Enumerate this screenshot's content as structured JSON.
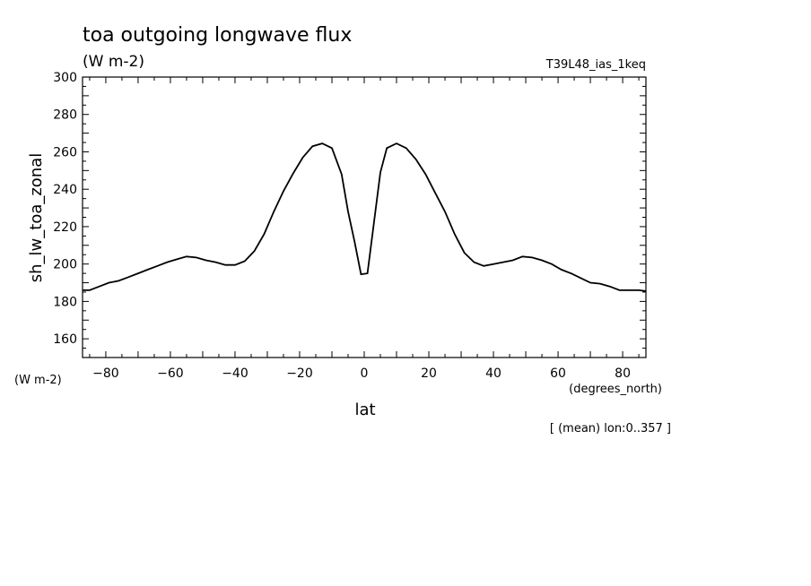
{
  "chart_data": {
    "type": "line",
    "title": "toa outgoing longwave flux",
    "units": "(W m-2)",
    "experiment": "T39L48_ias_1keq",
    "ylabel": "sh_lw_toa_zonal",
    "ylabel_units": "(W m-2)",
    "xlabel": "lat",
    "xlabel_units": "(degrees_north)",
    "footnote": "[ (mean) lon:0..357 ]",
    "xlim": [
      -87.2,
      87.2
    ],
    "ylim": [
      150,
      300
    ],
    "x_ticks": [
      -80,
      -60,
      -40,
      -20,
      0,
      20,
      40,
      60,
      80
    ],
    "y_ticks": [
      160,
      180,
      200,
      220,
      240,
      260,
      280,
      300
    ],
    "grid": false,
    "series": [
      {
        "x": [
          -87.2,
          -85,
          -82,
          -79,
          -76,
          -73,
          -70,
          -67,
          -64,
          -61,
          -58,
          -55,
          -52,
          -49,
          -46,
          -43,
          -40,
          -37,
          -34,
          -31,
          -28,
          -25,
          -22,
          -19,
          -16,
          -13,
          -10,
          -7,
          -5,
          -3,
          -1,
          1,
          3,
          5,
          7,
          10,
          13,
          16,
          19,
          22,
          25,
          28,
          31,
          34,
          37,
          40,
          43,
          46,
          49,
          52,
          55,
          58,
          61,
          64,
          67,
          70,
          73,
          76,
          79,
          82,
          85,
          87.2
        ],
        "y": [
          186,
          186,
          188,
          190,
          191,
          193,
          195,
          197,
          199,
          201,
          202.5,
          204,
          203.5,
          202,
          201,
          199.5,
          199.5,
          201.5,
          207,
          216,
          228,
          239,
          248.5,
          257,
          263,
          264.5,
          262,
          248,
          228,
          212,
          194.5,
          195,
          222,
          249,
          262,
          264.5,
          262,
          256,
          248,
          238,
          228,
          216,
          206,
          201,
          199,
          200,
          201,
          202,
          204,
          203.5,
          202,
          200,
          197,
          195,
          192.5,
          190,
          189.5,
          188,
          186,
          186,
          186,
          185.5
        ]
      }
    ]
  }
}
